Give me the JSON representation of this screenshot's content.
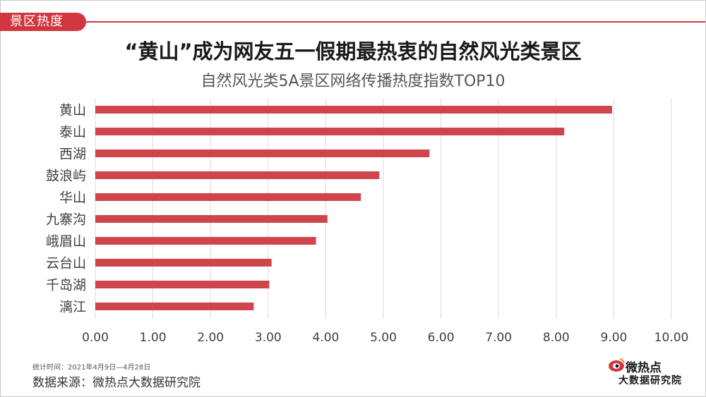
{
  "header": {
    "section_tag": "景区热度",
    "title": "“黄山”成为网友五一假期最热衷的自然风光类景区"
  },
  "chart_data": {
    "type": "bar",
    "orientation": "horizontal",
    "title": "自然风光类5A景区网络传播热度指数TOP10",
    "categories": [
      "黄山",
      "泰山",
      "西湖",
      "鼓浪屿",
      "华山",
      "九寨沟",
      "峨眉山",
      "云台山",
      "千岛湖",
      "漓江"
    ],
    "values": [
      8.97,
      8.14,
      5.8,
      4.93,
      4.61,
      4.03,
      3.83,
      3.06,
      3.02,
      2.75
    ],
    "xlim": [
      0,
      10
    ],
    "x_ticks": [
      "0.00",
      "1.00",
      "2.00",
      "3.00",
      "4.00",
      "5.00",
      "6.00",
      "7.00",
      "8.00",
      "9.00",
      "10.00"
    ],
    "bar_color": "#d0454b",
    "grid": true
  },
  "footer": {
    "stat_period": "统计时间：2021年4月9日—4月28日",
    "source": "数据来源：微热点大数据研究院",
    "logo_top": "微热点",
    "logo_bottom": "大数据研究院"
  },
  "colors": {
    "accent": "#d0373e"
  }
}
